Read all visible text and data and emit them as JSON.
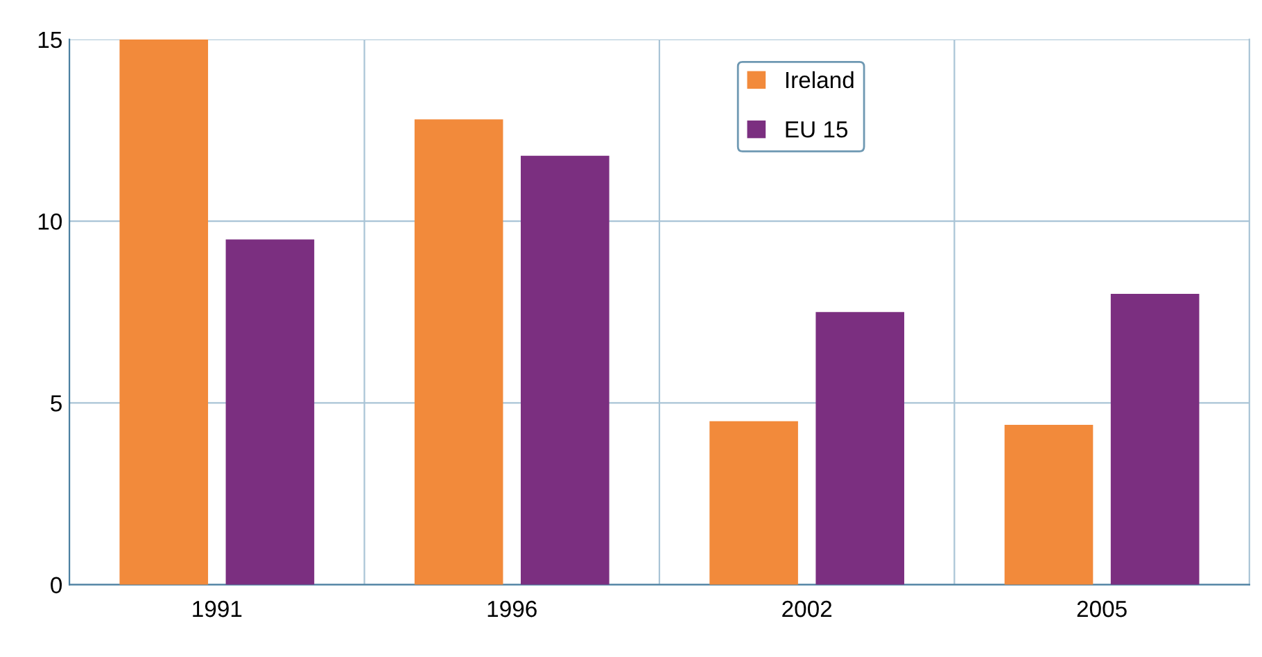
{
  "chart_data": {
    "type": "bar",
    "categories": [
      "1991",
      "1996",
      "2002",
      "2005"
    ],
    "series": [
      {
        "name": "Ireland",
        "color": "#f28a3b",
        "values": [
          15,
          12.8,
          4.5,
          4.4
        ]
      },
      {
        "name": "EU 15",
        "color": "#7b2f80",
        "values": [
          9.5,
          11.8,
          7.5,
          8.0
        ]
      }
    ],
    "ylim": [
      0,
      15
    ],
    "yticks": [
      0,
      5,
      10,
      15
    ],
    "grid": true,
    "legend": "top"
  }
}
